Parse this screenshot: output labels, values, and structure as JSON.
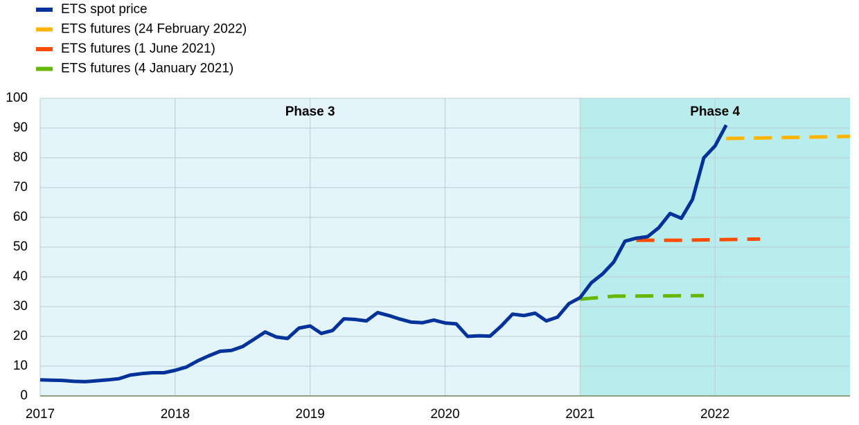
{
  "chart_data": {
    "type": "line",
    "regions": [
      {
        "label": "Phase 3",
        "start": 2017,
        "end": 2021,
        "color": "#e3f4fb"
      },
      {
        "label": "Phase 4",
        "start": 2021,
        "end": 2023,
        "color": "#b9eded"
      }
    ],
    "series": [
      {
        "name": "ETS spot price",
        "color": "#003299",
        "dashed": false,
        "x": [
          2017,
          2017.083,
          2017.167,
          2017.25,
          2017.333,
          2017.417,
          2017.5,
          2017.583,
          2017.667,
          2017.75,
          2017.833,
          2017.917,
          2018,
          2018.083,
          2018.167,
          2018.25,
          2018.333,
          2018.417,
          2018.5,
          2018.583,
          2018.667,
          2018.75,
          2018.833,
          2018.917,
          2019,
          2019.083,
          2019.167,
          2019.25,
          2019.333,
          2019.417,
          2019.5,
          2019.583,
          2019.667,
          2019.75,
          2019.833,
          2019.917,
          2020,
          2020.083,
          2020.167,
          2020.25,
          2020.333,
          2020.417,
          2020.5,
          2020.583,
          2020.667,
          2020.75,
          2020.833,
          2020.917,
          2021,
          2021.083,
          2021.167,
          2021.25,
          2021.333,
          2021.417,
          2021.5,
          2021.583,
          2021.667,
          2021.75,
          2021.833,
          2021.917,
          2022,
          2022.083
        ],
        "values": [
          5.4,
          5.3,
          5.2,
          4.9,
          4.8,
          5.1,
          5.4,
          5.8,
          7.0,
          7.5,
          7.8,
          7.8,
          8.6,
          9.7,
          11.8,
          13.5,
          15.0,
          15.3,
          16.6,
          19.0,
          21.5,
          19.8,
          19.3,
          22.8,
          23.5,
          21.0,
          22.0,
          25.9,
          25.7,
          25.2,
          28.0,
          27.0,
          25.8,
          24.8,
          24.6,
          25.5,
          24.5,
          24.2,
          20.0,
          20.2,
          20.1,
          23.5,
          27.5,
          27.0,
          27.8,
          25.2,
          26.5,
          31.0,
          33.0,
          38.0,
          41.0,
          45.0,
          52.0,
          53.0,
          53.5,
          56.5,
          61.3,
          59.7,
          66.0,
          80.0,
          84.0,
          91.0
        ]
      },
      {
        "name": "ETS futures (24 February 2022)",
        "color": "#ffb400",
        "dashed": true,
        "x": [
          2022.083,
          2022.5,
          2023
        ],
        "values": [
          86.5,
          86.8,
          87.2
        ]
      },
      {
        "name": "ETS futures (1 June 2021)",
        "color": "#ff4b00",
        "dashed": true,
        "x": [
          2021.417,
          2021.75,
          2022,
          2022.333
        ],
        "values": [
          52.3,
          52.3,
          52.5,
          52.7
        ]
      },
      {
        "name": "ETS futures (4 January 2021)",
        "color": "#65b800",
        "dashed": true,
        "x": [
          2021,
          2021.25,
          2021.917
        ],
        "values": [
          32.5,
          33.5,
          33.7
        ]
      }
    ],
    "xlim": [
      2017,
      2023
    ],
    "xticks": [
      2017,
      2018,
      2019,
      2020,
      2021,
      2022
    ],
    "ylim": [
      0,
      100
    ],
    "yticks": [
      0,
      10,
      20,
      30,
      40,
      50,
      60,
      70,
      80,
      90,
      100
    ],
    "grid": true,
    "legend": "top-left"
  }
}
